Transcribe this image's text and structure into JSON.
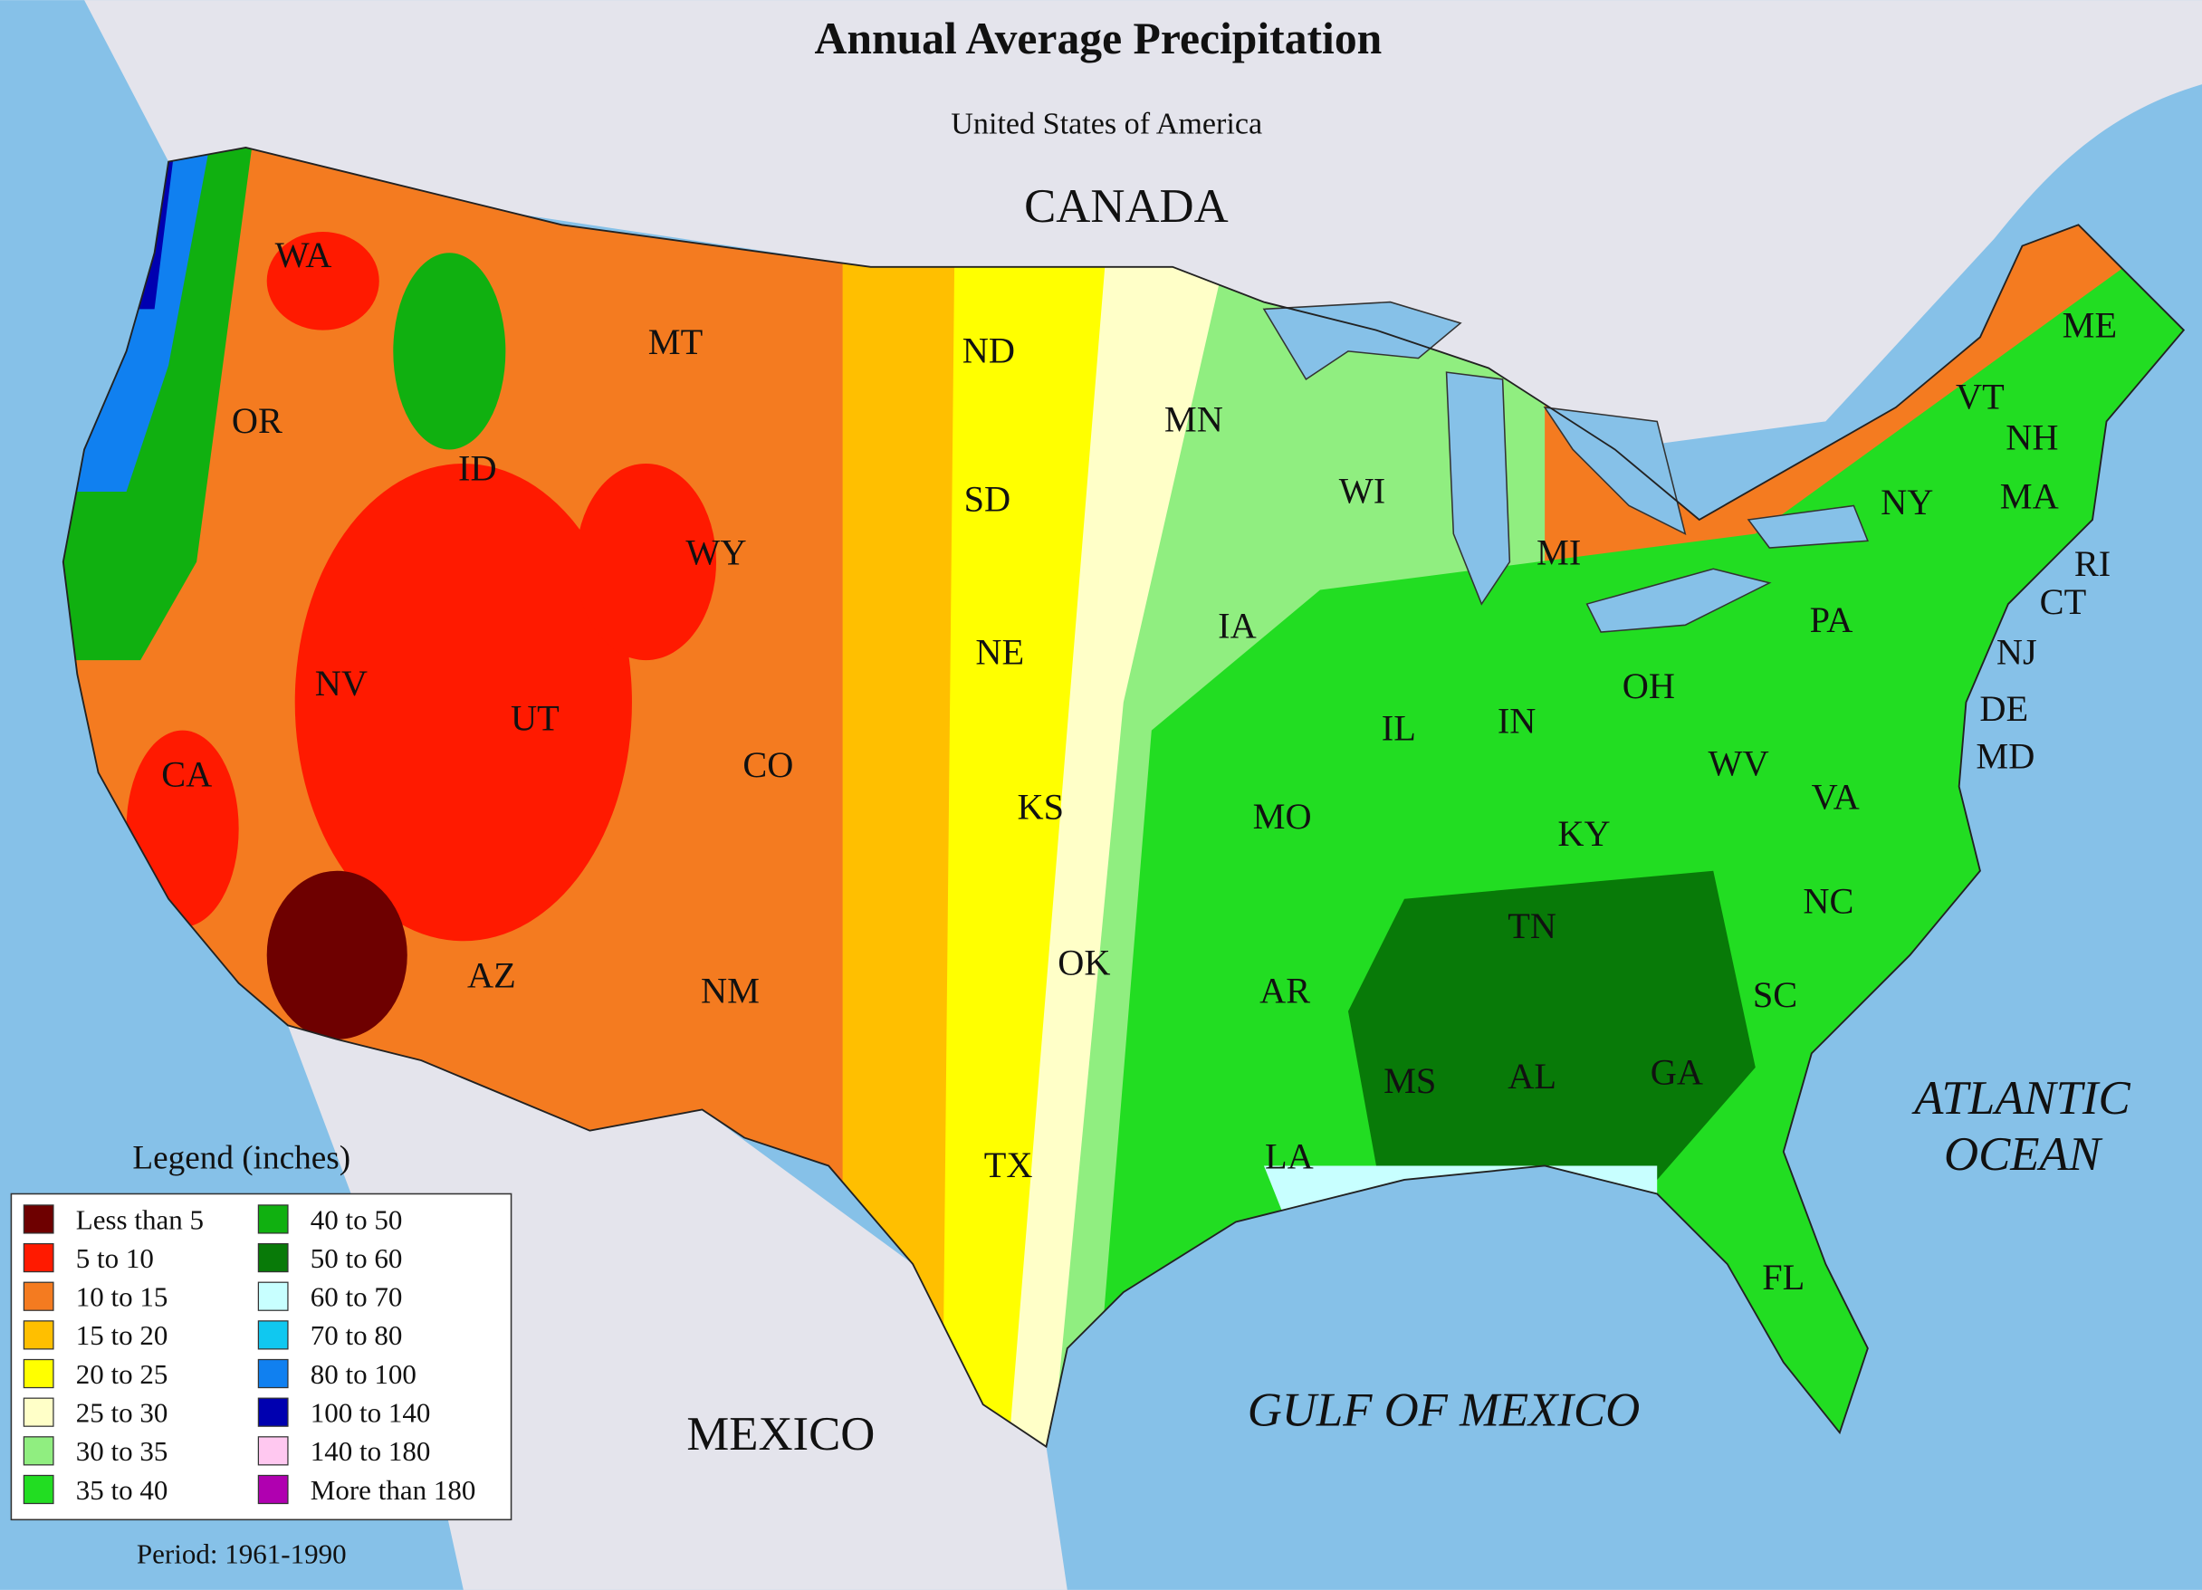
{
  "header": {
    "title": "Annual Average Precipitation",
    "subtitle": "United States of America"
  },
  "regions": {
    "north": "CANADA",
    "south": "MEXICO",
    "gulf": "GULF OF MEXICO",
    "ocean": "ATLANTIC OCEAN"
  },
  "states": [
    "WA",
    "OR",
    "CA",
    "NV",
    "ID",
    "MT",
    "WY",
    "UT",
    "AZ",
    "CO",
    "NM",
    "ND",
    "SD",
    "NE",
    "KS",
    "OK",
    "TX",
    "MN",
    "IA",
    "MO",
    "AR",
    "LA",
    "WI",
    "IL",
    "MI",
    "IN",
    "OH",
    "KY",
    "TN",
    "MS",
    "AL",
    "GA",
    "FL",
    "SC",
    "NC",
    "VA",
    "WV",
    "PA",
    "NY",
    "ME",
    "VT",
    "NH",
    "MA",
    "RI",
    "CT",
    "NJ",
    "DE",
    "MD"
  ],
  "legend": {
    "title": "Legend (inches)",
    "items": [
      {
        "label": "Less than 5",
        "color": "#6e0000"
      },
      {
        "label": "5 to 10",
        "color": "#ff1a00"
      },
      {
        "label": "10 to 15",
        "color": "#f47b20"
      },
      {
        "label": "15 to 20",
        "color": "#ffbf00"
      },
      {
        "label": "20 to 25",
        "color": "#ffff00"
      },
      {
        "label": "25 to 30",
        "color": "#ffffc8"
      },
      {
        "label": "30 to 35",
        "color": "#90ee80"
      },
      {
        "label": "35 to 40",
        "color": "#22dd22"
      },
      {
        "label": "40 to 50",
        "color": "#10b010"
      },
      {
        "label": "50 to 60",
        "color": "#087a08"
      },
      {
        "label": "60 to 70",
        "color": "#c8ffff"
      },
      {
        "label": "70 to 80",
        "color": "#10c8f0"
      },
      {
        "label": "80 to 100",
        "color": "#1080f0"
      },
      {
        "label": "100 to 140",
        "color": "#0000b0"
      },
      {
        "label": "140 to 180",
        "color": "#ffc8f0"
      },
      {
        "label": "More than 180",
        "color": "#b000b0"
      }
    ]
  },
  "footer": {
    "period": "Period: 1961-1990"
  }
}
